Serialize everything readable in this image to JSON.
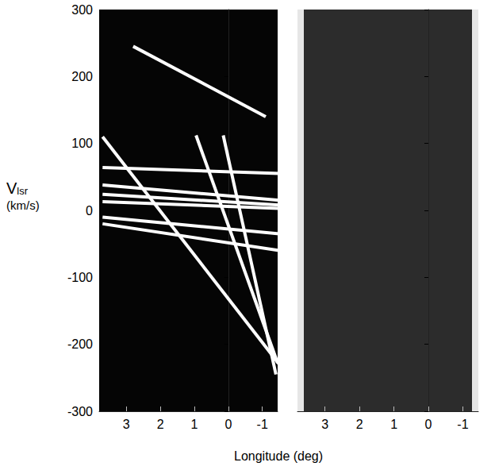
{
  "chart_data": [
    {
      "type": "line",
      "xlabel": "Longitude (deg)",
      "ylabel": "Vlsr (km/s)",
      "xlim": [
        3.8,
        -1.45
      ],
      "ylim": [
        -300,
        300
      ],
      "xticks": [
        3,
        2,
        1,
        0,
        -1
      ],
      "yticks": [
        -300,
        -200,
        -100,
        0,
        100,
        200,
        300
      ],
      "grid": false,
      "tick_labels": true,
      "series": [
        {
          "color": "#ffffff",
          "x": [
            2.8,
            -1.1
          ],
          "values": [
            245,
            140
          ]
        },
        {
          "color": "#ffffff",
          "x": [
            3.7,
            -1.5
          ],
          "values": [
            110,
            -230
          ]
        },
        {
          "color": "#ffffff",
          "x": [
            0.95,
            -1.45
          ],
          "values": [
            112,
            -228
          ]
        },
        {
          "color": "#ffffff",
          "x": [
            0.15,
            -1.4
          ],
          "values": [
            112,
            -245
          ]
        },
        {
          "color": "#ffffff",
          "x": [
            3.7,
            -1.5
          ],
          "values": [
            64,
            55
          ]
        },
        {
          "color": "#ffffff",
          "x": [
            3.7,
            -1.5
          ],
          "values": [
            38,
            15
          ]
        },
        {
          "color": "#ffffff",
          "x": [
            3.7,
            -1.5
          ],
          "values": [
            24,
            8
          ]
        },
        {
          "color": "#ffffff",
          "x": [
            3.7,
            -1.5
          ],
          "values": [
            13,
            3
          ]
        },
        {
          "color": "#ffffff",
          "x": [
            3.7,
            -1.5
          ],
          "values": [
            -10,
            -35
          ]
        },
        {
          "color": "#ffffff",
          "x": [
            3.7,
            -1.5
          ],
          "values": [
            -20,
            -60
          ]
        }
      ]
    },
    {
      "type": "line",
      "xlim": [
        3.8,
        -1.45
      ],
      "ylim": [
        -300,
        300
      ],
      "xticks": [
        3,
        2,
        1,
        0,
        -1
      ],
      "yticks": [
        -300,
        -200,
        -100,
        0,
        100,
        200,
        300
      ],
      "grid": false,
      "tick_labels": "x",
      "series": []
    }
  ]
}
